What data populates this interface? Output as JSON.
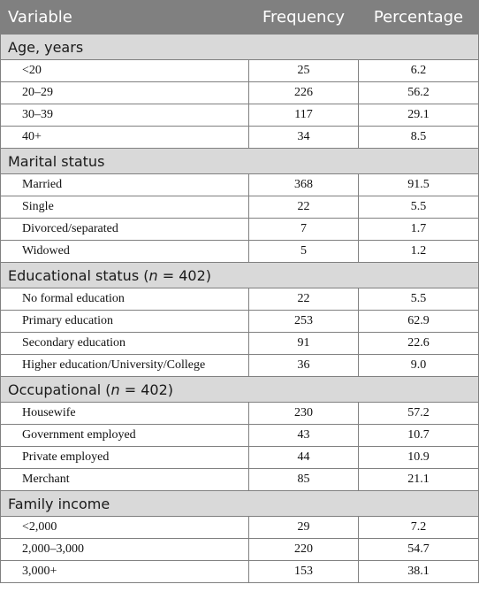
{
  "header": {
    "variable": "Variable",
    "frequency": "Frequency",
    "percentage": "Percentage"
  },
  "sections": [
    {
      "title": "Age, years",
      "title_n": "",
      "rows": [
        {
          "label": "<20",
          "frequency": "25",
          "percentage": "6.2"
        },
        {
          "label": "20–29",
          "frequency": "226",
          "percentage": "56.2"
        },
        {
          "label": "30–39",
          "frequency": "117",
          "percentage": "29.1"
        },
        {
          "label": "40+",
          "frequency": "34",
          "percentage": "8.5"
        }
      ]
    },
    {
      "title": "Marital status",
      "title_n": "",
      "rows": [
        {
          "label": "Married",
          "frequency": "368",
          "percentage": "91.5"
        },
        {
          "label": "Single",
          "frequency": "22",
          "percentage": "5.5"
        },
        {
          "label": "Divorced/separated",
          "frequency": "7",
          "percentage": "1.7"
        },
        {
          "label": "Widowed",
          "frequency": "5",
          "percentage": "1.2"
        }
      ]
    },
    {
      "title": "Educational status (",
      "title_n": "n",
      "title_tail": " = 402)",
      "rows": [
        {
          "label": "No formal education",
          "frequency": "22",
          "percentage": "5.5"
        },
        {
          "label": "Primary education",
          "frequency": "253",
          "percentage": "62.9"
        },
        {
          "label": "Secondary education",
          "frequency": "91",
          "percentage": "22.6"
        },
        {
          "label": "Higher education/University/College",
          "frequency": "36",
          "percentage": "9.0"
        }
      ]
    },
    {
      "title": "Occupational (",
      "title_n": "n",
      "title_tail": " = 402)",
      "rows": [
        {
          "label": "Housewife",
          "frequency": "230",
          "percentage": "57.2"
        },
        {
          "label": "Government employed",
          "frequency": "43",
          "percentage": "10.7"
        },
        {
          "label": "Private employed",
          "frequency": "44",
          "percentage": "10.9"
        },
        {
          "label": "Merchant",
          "frequency": "85",
          "percentage": "21.1"
        }
      ]
    },
    {
      "title": "Family income",
      "title_n": "",
      "rows": [
        {
          "label": "<2,000",
          "frequency": "29",
          "percentage": "7.2"
        },
        {
          "label": "2,000–3,000",
          "frequency": "220",
          "percentage": "54.7"
        },
        {
          "label": "3,000+",
          "frequency": "153",
          "percentage": "38.1"
        }
      ]
    }
  ],
  "colors": {
    "header_bg": "#808080",
    "section_bg": "#d9d9d9",
    "border": "#808080"
  }
}
